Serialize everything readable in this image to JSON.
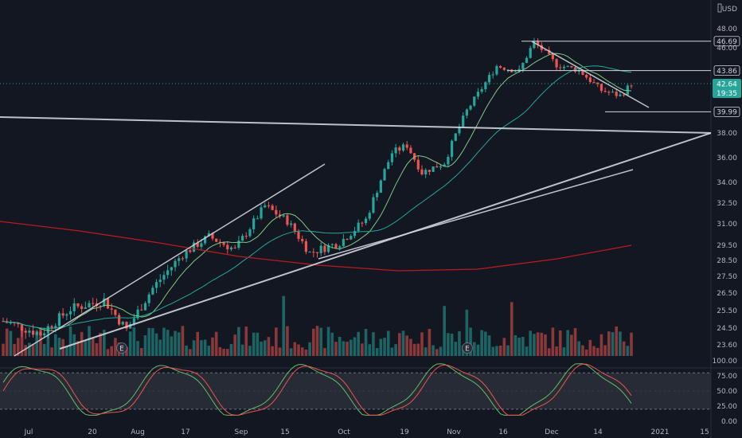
{
  "header": {
    "currency": "USD"
  },
  "chart_data": {
    "type": "candlestick",
    "price_axis": {
      "ticks": [
        48.0,
        46.0,
        38.0,
        36.0,
        34.0,
        32.5,
        31.0,
        29.5,
        28.5,
        27.5,
        26.5,
        25.5,
        24.5,
        23.6
      ],
      "tick_labels": [
        "48.00",
        "46.00",
        "38.00",
        "36.00",
        "34.00",
        "32.50",
        "31.00",
        "29.50",
        "28.50",
        "27.50",
        "26.50",
        "25.50",
        "24.50",
        "23.60"
      ],
      "level_labels": [
        "46.69",
        "43.86",
        "39.99"
      ],
      "last_price": "42.64",
      "countdown": "19:35"
    },
    "oscillator_axis": {
      "tick_labels": [
        "100.00",
        "75.00",
        "50.00",
        "25.00",
        "0.00"
      ],
      "ticks": [
        100,
        75,
        50,
        25,
        0
      ],
      "band": [
        20,
        80
      ]
    },
    "time_axis": {
      "labels": [
        "Jul",
        "20",
        "Aug",
        "17",
        "Sep",
        "15",
        "Oct",
        "19",
        "Nov",
        "16",
        "Dec",
        "14",
        "2021",
        "15"
      ]
    },
    "earnings_markers": [
      "E",
      "E"
    ],
    "horizontal_levels": [
      46.69,
      43.86,
      39.99
    ],
    "colors": {
      "up": "#26a69a",
      "down": "#ef5350",
      "ma_fast": "#81c784",
      "ma_mid": "#26a69a",
      "ma_slow": "#b71c1c",
      "stoch_k": "#ef5350",
      "stoch_d": "#66bb6a",
      "trendline": "#d1d4dc",
      "last_price_badge": "#26a69a"
    },
    "price_ohlc_approx": {
      "description_free": true,
      "range": [
        23.0,
        47.0
      ]
    }
  }
}
